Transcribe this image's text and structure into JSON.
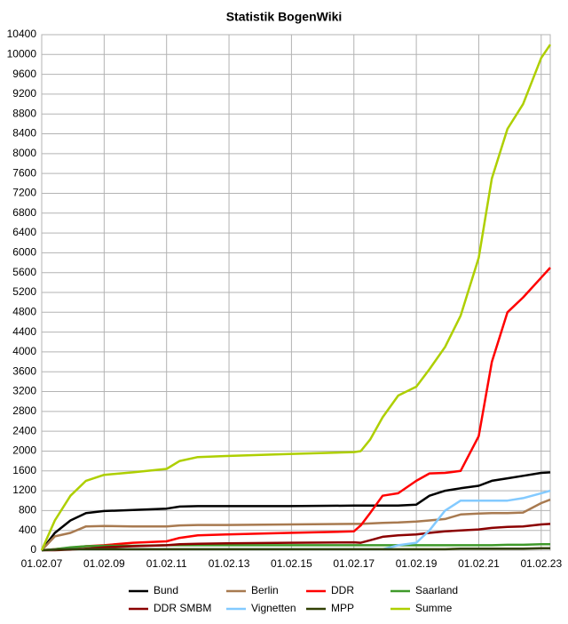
{
  "chart_data": {
    "type": "line",
    "title": "Statistik BogenWiki",
    "x": [
      2007.08,
      2007.5,
      2008.0,
      2008.5,
      2009.08,
      2010,
      2011.08,
      2011.5,
      2012.08,
      2013,
      2015,
      2017.08,
      2017.3,
      2017.6,
      2018,
      2018.5,
      2019.08,
      2019.5,
      2020,
      2020.5,
      2021.08,
      2021.5,
      2022,
      2022.5,
      2023.08,
      2023.37
    ],
    "xlim": [
      2007.08,
      2023.37
    ],
    "xticks": [
      {
        "value": 2007.08,
        "label": "01.02.07"
      },
      {
        "value": 2009.08,
        "label": "01.02.09"
      },
      {
        "value": 2011.08,
        "label": "01.02.11"
      },
      {
        "value": 2013.08,
        "label": "01.02.13"
      },
      {
        "value": 2015.08,
        "label": "01.02.15"
      },
      {
        "value": 2017.08,
        "label": "01.02.17"
      },
      {
        "value": 2019.08,
        "label": "01.02.19"
      },
      {
        "value": 2021.08,
        "label": "01.02.21"
      },
      {
        "value": 2023.08,
        "label": "01.02.23"
      }
    ],
    "ylim": [
      0,
      10400
    ],
    "yticks": [
      0,
      400,
      800,
      1200,
      1600,
      2000,
      2400,
      2800,
      3200,
      3600,
      4000,
      4400,
      4800,
      5200,
      5600,
      6000,
      6400,
      6800,
      7200,
      7600,
      8000,
      8400,
      8800,
      9200,
      9600,
      10000,
      10400
    ],
    "grid": true,
    "series": [
      {
        "name": "Bund",
        "color": "#000000",
        "values": [
          0,
          350,
          600,
          750,
          790,
          810,
          840,
          880,
          890,
          890,
          890,
          900,
          900,
          900,
          900,
          900,
          920,
          1100,
          1200,
          1250,
          1300,
          1400,
          1450,
          1500,
          1560,
          1570
        ]
      },
      {
        "name": "Berlin",
        "color": "#a87a50",
        "values": [
          0,
          280,
          350,
          480,
          490,
          480,
          480,
          500,
          510,
          510,
          520,
          530,
          530,
          540,
          550,
          560,
          580,
          600,
          630,
          720,
          740,
          750,
          750,
          760,
          950,
          1020
        ]
      },
      {
        "name": "DDR",
        "color": "#ff0000",
        "values": [
          0,
          20,
          50,
          80,
          100,
          150,
          180,
          250,
          300,
          320,
          350,
          380,
          500,
          750,
          1100,
          1150,
          1400,
          1550,
          1560,
          1600,
          2300,
          3800,
          4800,
          5100,
          5500,
          5700
        ]
      },
      {
        "name": "Saarland",
        "color": "#3f9a2a",
        "values": [
          0,
          20,
          60,
          80,
          90,
          90,
          100,
          100,
          100,
          100,
          100,
          100,
          100,
          100,
          100,
          100,
          100,
          100,
          100,
          100,
          100,
          100,
          110,
          110,
          120,
          120
        ]
      },
      {
        "name": "DDR SMBM",
        "color": "#8b0000",
        "values": [
          0,
          0,
          10,
          30,
          60,
          80,
          100,
          120,
          130,
          140,
          150,
          160,
          150,
          200,
          270,
          300,
          320,
          350,
          380,
          400,
          420,
          450,
          470,
          480,
          520,
          530
        ]
      },
      {
        "name": "Vignetten",
        "color": "#83caff",
        "values": [
          0,
          10,
          20,
          20,
          20,
          20,
          20,
          20,
          20,
          20,
          20,
          20,
          20,
          20,
          20,
          100,
          150,
          400,
          800,
          1000,
          1000,
          1000,
          1000,
          1050,
          1150,
          1200
        ]
      },
      {
        "name": "MPP",
        "color": "#314004",
        "values": [
          0,
          10,
          20,
          20,
          20,
          20,
          20,
          20,
          20,
          20,
          20,
          20,
          20,
          20,
          20,
          20,
          20,
          20,
          20,
          30,
          30,
          30,
          30,
          30,
          40,
          40
        ]
      },
      {
        "name": "Summe",
        "color": "#aecf00",
        "values": [
          0,
          600,
          1100,
          1400,
          1520,
          1570,
          1640,
          1800,
          1880,
          1900,
          1940,
          1980,
          2000,
          2230,
          2680,
          3120,
          3300,
          3650,
          4100,
          4730,
          5900,
          7500,
          8500,
          9000,
          9930,
          10200
        ]
      }
    ]
  }
}
